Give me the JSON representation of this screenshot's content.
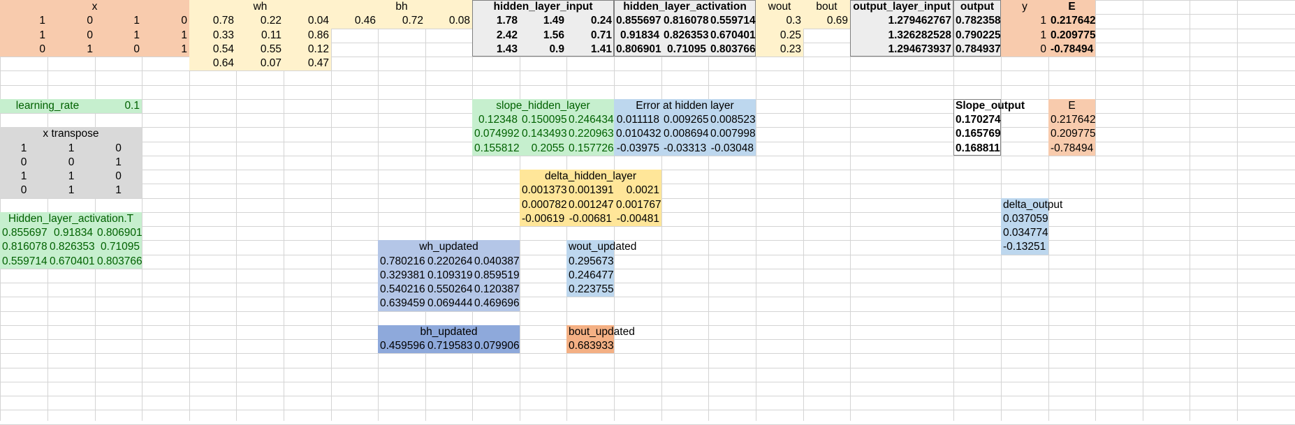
{
  "colors": {
    "orange": "#f8cbad",
    "yellow": "#fff2cc",
    "gray": "#ededed",
    "green": "#c6efce",
    "green_text": "#006100",
    "blue": "#bdd7ee",
    "lightgray": "#d9d9d9",
    "gold": "#ffe699",
    "periwinkle": "#b4c6e7",
    "darkblue": "#8ea9db",
    "salmon": "#f4b084"
  },
  "headers": {
    "x": "x",
    "wh": "wh",
    "bh": "bh",
    "hidden_layer_input": "hidden_layer_input",
    "hidden_layer_activation": "hidden_layer_activation",
    "wout": "wout",
    "bout": "bout",
    "output_layer_input": "output_layer_input",
    "output": "output",
    "y": "y",
    "E": "E"
  },
  "x": [
    [
      "1",
      "0",
      "1",
      "0"
    ],
    [
      "1",
      "0",
      "1",
      "1"
    ],
    [
      "0",
      "1",
      "0",
      "1"
    ]
  ],
  "wh": [
    [
      "0.78",
      "0.22",
      "0.04"
    ],
    [
      "0.33",
      "0.11",
      "0.86"
    ],
    [
      "0.54",
      "0.55",
      "0.12"
    ],
    [
      "0.64",
      "0.07",
      "0.47"
    ]
  ],
  "bh": [
    "0.46",
    "0.72",
    "0.08"
  ],
  "hidden_layer_input": [
    [
      "1.78",
      "1.49",
      "0.24"
    ],
    [
      "2.42",
      "1.56",
      "0.71"
    ],
    [
      "1.43",
      "0.9",
      "1.41"
    ]
  ],
  "hidden_layer_activation": [
    [
      "0.855697",
      "0.816078",
      "0.559714"
    ],
    [
      "0.91834",
      "0.826353",
      "0.670401"
    ],
    [
      "0.806901",
      "0.71095",
      "0.803766"
    ]
  ],
  "wout": [
    "0.3",
    "0.25",
    "0.23"
  ],
  "bout": "0.69",
  "output_layer_input": [
    "1.279462767",
    "1.326282528",
    "1.294673937"
  ],
  "output": [
    "0.782358",
    "0.790225",
    "0.784937"
  ],
  "y": [
    "1",
    "1",
    "0"
  ],
  "E": [
    "0.217642",
    "0.209775",
    "-0.78494"
  ],
  "learning_rate": {
    "label": "learning_rate",
    "value": "0.1"
  },
  "x_transpose": {
    "label": "x transpose",
    "rows": [
      [
        "1",
        "1",
        "0"
      ],
      [
        "0",
        "0",
        "1"
      ],
      [
        "1",
        "1",
        "0"
      ],
      [
        "0",
        "1",
        "1"
      ]
    ]
  },
  "hidden_activation_T": {
    "label": "Hidden_layer_activation.T",
    "rows": [
      [
        "0.855697",
        "0.91834",
        "0.806901"
      ],
      [
        "0.816078",
        "0.826353",
        "0.71095"
      ],
      [
        "0.559714",
        "0.670401",
        "0.803766"
      ]
    ]
  },
  "slope_hidden_layer": {
    "label": "slope_hidden_layer",
    "rows": [
      [
        "0.12348",
        "0.150095",
        "0.246434"
      ],
      [
        "0.074992",
        "0.143493",
        "0.220963"
      ],
      [
        "0.155812",
        "0.2055",
        "0.157726"
      ]
    ]
  },
  "error_hidden_layer": {
    "label": "Error at hidden layer",
    "rows": [
      [
        "0.011118",
        "0.009265",
        "0.008523"
      ],
      [
        "0.010432",
        "0.008694",
        "0.007998"
      ],
      [
        "-0.03975",
        "-0.03313",
        "-0.03048"
      ]
    ]
  },
  "slope_output": {
    "label": "Slope_output",
    "values": [
      "0.170274",
      "0.165769",
      "0.168811"
    ]
  },
  "E2": {
    "label": "E",
    "values": [
      "0.217642",
      "0.209775",
      "-0.78494"
    ]
  },
  "delta_hidden_layer": {
    "label": "delta_hidden_layer",
    "rows": [
      [
        "0.001373",
        "0.001391",
        "0.0021"
      ],
      [
        "0.000782",
        "0.001247",
        "0.001767"
      ],
      [
        "-0.00619",
        "-0.00681",
        "-0.00481"
      ]
    ]
  },
  "delta_output": {
    "label": "delta_output",
    "values": [
      "0.037059",
      "0.034774",
      "-0.13251"
    ]
  },
  "wh_updated": {
    "label": "wh_updated",
    "rows": [
      [
        "0.780216",
        "0.220264",
        "0.040387"
      ],
      [
        "0.329381",
        "0.109319",
        "0.859519"
      ],
      [
        "0.540216",
        "0.550264",
        "0.120387"
      ],
      [
        "0.639459",
        "0.069444",
        "0.469696"
      ]
    ]
  },
  "wout_updated": {
    "label": "wout_updated",
    "values": [
      "0.295673",
      "0.246477",
      "0.223755"
    ]
  },
  "bh_updated": {
    "label": "bh_updated",
    "values": [
      "0.459596",
      "0.719583",
      "0.079906"
    ]
  },
  "bout_updated": {
    "label": "bout_updated",
    "value": "0.683933"
  }
}
